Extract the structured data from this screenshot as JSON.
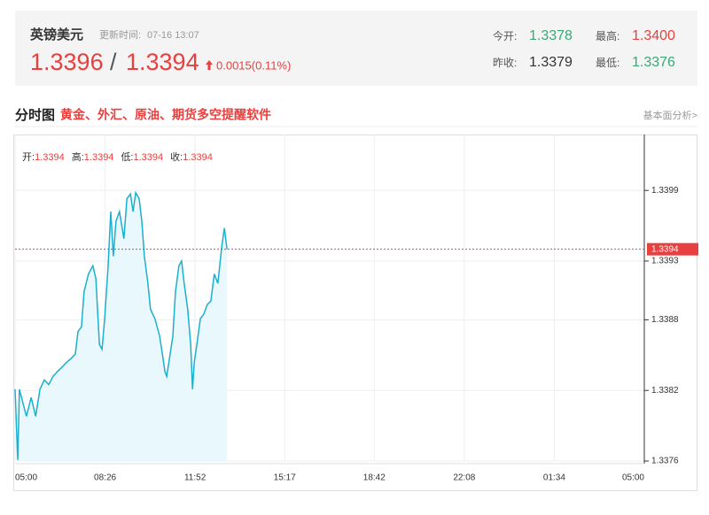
{
  "header": {
    "title": "英镑美元",
    "update_label": "更新时间:",
    "update_time": "07-16 13:07",
    "bid": "1.3396",
    "separator": "/",
    "ask": "1.3394",
    "change": "0.0015(0.11%)",
    "stats": [
      {
        "label": "今开:",
        "value": "1.3378"
      },
      {
        "label": "最高:",
        "value": "1.3400"
      },
      {
        "label": "昨收:",
        "value": "1.3379"
      },
      {
        "label": "最低:",
        "value": "1.3376"
      }
    ]
  },
  "section": {
    "title": "分时图",
    "promo": "黄金、外汇、原油、期货多空提醒软件",
    "link": "基本面分析>"
  },
  "chart_data": {
    "type": "line",
    "ohlc": [
      {
        "label": "开:",
        "value": "1.3394"
      },
      {
        "label": "高:",
        "value": "1.3394"
      },
      {
        "label": "低:",
        "value": "1.3394"
      },
      {
        "label": "收:",
        "value": "1.3394"
      }
    ],
    "xticks": [
      "05:00",
      "08:26",
      "11:52",
      "15:17",
      "18:42",
      "22:08",
      "01:34",
      "05:00"
    ],
    "ylim": [
      1.3376,
      1.3403
    ],
    "yticks": [
      1.3399,
      1.3393,
      1.3388,
      1.3382,
      1.3376
    ],
    "last_price": 1.3394,
    "grid": true,
    "series": [
      {
        "color": "#1ab0cf",
        "x": [
          "05:00",
          "05:06",
          "05:10",
          "05:26",
          "05:37",
          "05:47",
          "05:57",
          "06:07",
          "06:17",
          "06:27",
          "06:37",
          "06:48",
          "06:58",
          "07:08",
          "07:18",
          "07:24",
          "07:32",
          "07:38",
          "07:48",
          "07:58",
          "08:05",
          "08:13",
          "08:19",
          "08:25",
          "08:33",
          "08:39",
          "08:45",
          "08:51",
          "08:59",
          "09:09",
          "09:16",
          "09:24",
          "09:30",
          "09:36",
          "09:44",
          "09:50",
          "09:56",
          "10:04",
          "10:10",
          "10:20",
          "10:31",
          "10:37",
          "10:43",
          "10:47",
          "10:55",
          "11:01",
          "11:07",
          "11:15",
          "11:21",
          "11:27",
          "11:35",
          "11:42",
          "11:46",
          "11:50",
          "11:56",
          "12:04",
          "12:12",
          "12:20",
          "12:28",
          "12:36",
          "12:44",
          "12:53",
          "12:59",
          "13:05"
        ],
        "values": [
          1.33821,
          1.33761,
          1.33821,
          1.33798,
          1.33814,
          1.33798,
          1.33821,
          1.33829,
          1.33825,
          1.33832,
          1.33836,
          1.3384,
          1.33844,
          1.33847,
          1.33851,
          1.3387,
          1.33874,
          1.33904,
          1.33919,
          1.33926,
          1.33915,
          1.33859,
          1.33855,
          1.33881,
          1.33926,
          1.33972,
          1.33934,
          1.33964,
          1.33972,
          1.33949,
          1.33983,
          1.33987,
          1.33972,
          1.33988,
          1.33983,
          1.33964,
          1.33934,
          1.33911,
          1.33889,
          1.33881,
          1.33866,
          1.33851,
          1.33836,
          1.33832,
          1.33851,
          1.33866,
          1.33904,
          1.33926,
          1.3393,
          1.33911,
          1.33889,
          1.33859,
          1.33821,
          1.33844,
          1.33859,
          1.33881,
          1.33885,
          1.33893,
          1.33896,
          1.33919,
          1.33911,
          1.33942,
          1.33958,
          1.3394
        ]
      }
    ]
  }
}
